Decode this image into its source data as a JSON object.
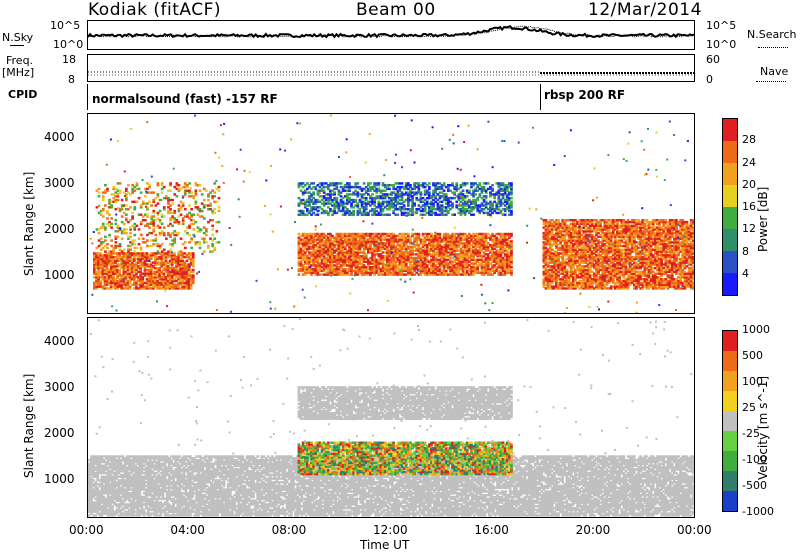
{
  "header": {
    "station": "Kodiak (fitACF)",
    "beam": "Beam 00",
    "date": "12/Mar/2014"
  },
  "side_labels": {
    "nsky": "N.Sky",
    "nsearch": "N.Search",
    "freq_line1": "Freq.",
    "freq_line2": "[MHz]",
    "nave": "Nave",
    "cpid": "CPID"
  },
  "small_panels": {
    "noise_ticks_left": [
      "10^5",
      "10^0"
    ],
    "noise_ticks_right": [
      "10^5",
      "10^0"
    ],
    "freq_ticks": [
      "18",
      "8"
    ],
    "nave_ticks": [
      "60",
      "0"
    ],
    "cpid_segments": [
      {
        "label": "normalsound (fast) -157 RF",
        "start_hour": 0.0
      },
      {
        "label": "rbsp 200 RF",
        "start_hour": 18.0
      }
    ]
  },
  "chart_data": [
    {
      "type": "heatmap",
      "title": "Power",
      "ylabel": "Slant Range [km]",
      "xlabel": "Time UT",
      "x_ticks": [
        "00:00",
        "04:00",
        "08:00",
        "12:00",
        "16:00",
        "20:00",
        "00:00"
      ],
      "y_ticks": [
        1000,
        2000,
        3000,
        4000
      ],
      "xlim_hours": [
        0,
        24
      ],
      "ylim_km": [
        180,
        4500
      ],
      "colorbar_label": "Power [dB]",
      "colorbar_ticks": [
        "4",
        "8",
        "12",
        "16",
        "20",
        "24",
        "28"
      ],
      "colorbar_colors": [
        "#1a1aff",
        "#2a50c8",
        "#2f8f6b",
        "#3fae3f",
        "#e8d020",
        "#f2a020",
        "#ee6a18",
        "#e02020"
      ],
      "regions": [
        {
          "t0": 0.2,
          "t1": 4.2,
          "r0": 700,
          "r1": 1500,
          "level": "high"
        },
        {
          "t0": 0.3,
          "t1": 5.2,
          "r0": 1500,
          "r1": 3000,
          "level": "streaks"
        },
        {
          "t0": 8.3,
          "t1": 16.8,
          "r0": 1000,
          "r1": 1900,
          "level": "high"
        },
        {
          "t0": 8.3,
          "t1": 16.8,
          "r0": 2300,
          "r1": 3000,
          "level": "ring"
        },
        {
          "t0": 18.0,
          "t1": 24.0,
          "r0": 700,
          "r1": 2200,
          "level": "high"
        }
      ]
    },
    {
      "type": "heatmap",
      "title": "Velocity",
      "ylabel": "Slant Range [km]",
      "xlabel": "Time UT",
      "x_ticks": [
        "00:00",
        "04:00",
        "08:00",
        "12:00",
        "16:00",
        "20:00",
        "00:00"
      ],
      "y_ticks": [
        1000,
        2000,
        3000,
        4000
      ],
      "xlim_hours": [
        0,
        24
      ],
      "ylim_km": [
        180,
        4500
      ],
      "colorbar_label": "Velocity [m s^-1]",
      "colorbar_ticks": [
        "1000",
        "500",
        "100",
        "25",
        "-25",
        "-100",
        "-500",
        "-1000"
      ],
      "colorbar_colors": [
        "#1a3fc8",
        "#2f7f6b",
        "#3fae3f",
        "#66d040",
        "#c0c0c0",
        "#f2d020",
        "#f2a020",
        "#ee6a18",
        "#e02020"
      ],
      "regions": [
        {
          "t0": 0.0,
          "t1": 24.0,
          "r0": 200,
          "r1": 1500,
          "level": "ground"
        },
        {
          "t0": 8.3,
          "t1": 16.8,
          "r0": 1100,
          "r1": 1800,
          "level": "mixed"
        },
        {
          "t0": 8.3,
          "t1": 16.8,
          "r0": 2300,
          "r1": 3000,
          "level": "ground"
        }
      ]
    }
  ]
}
